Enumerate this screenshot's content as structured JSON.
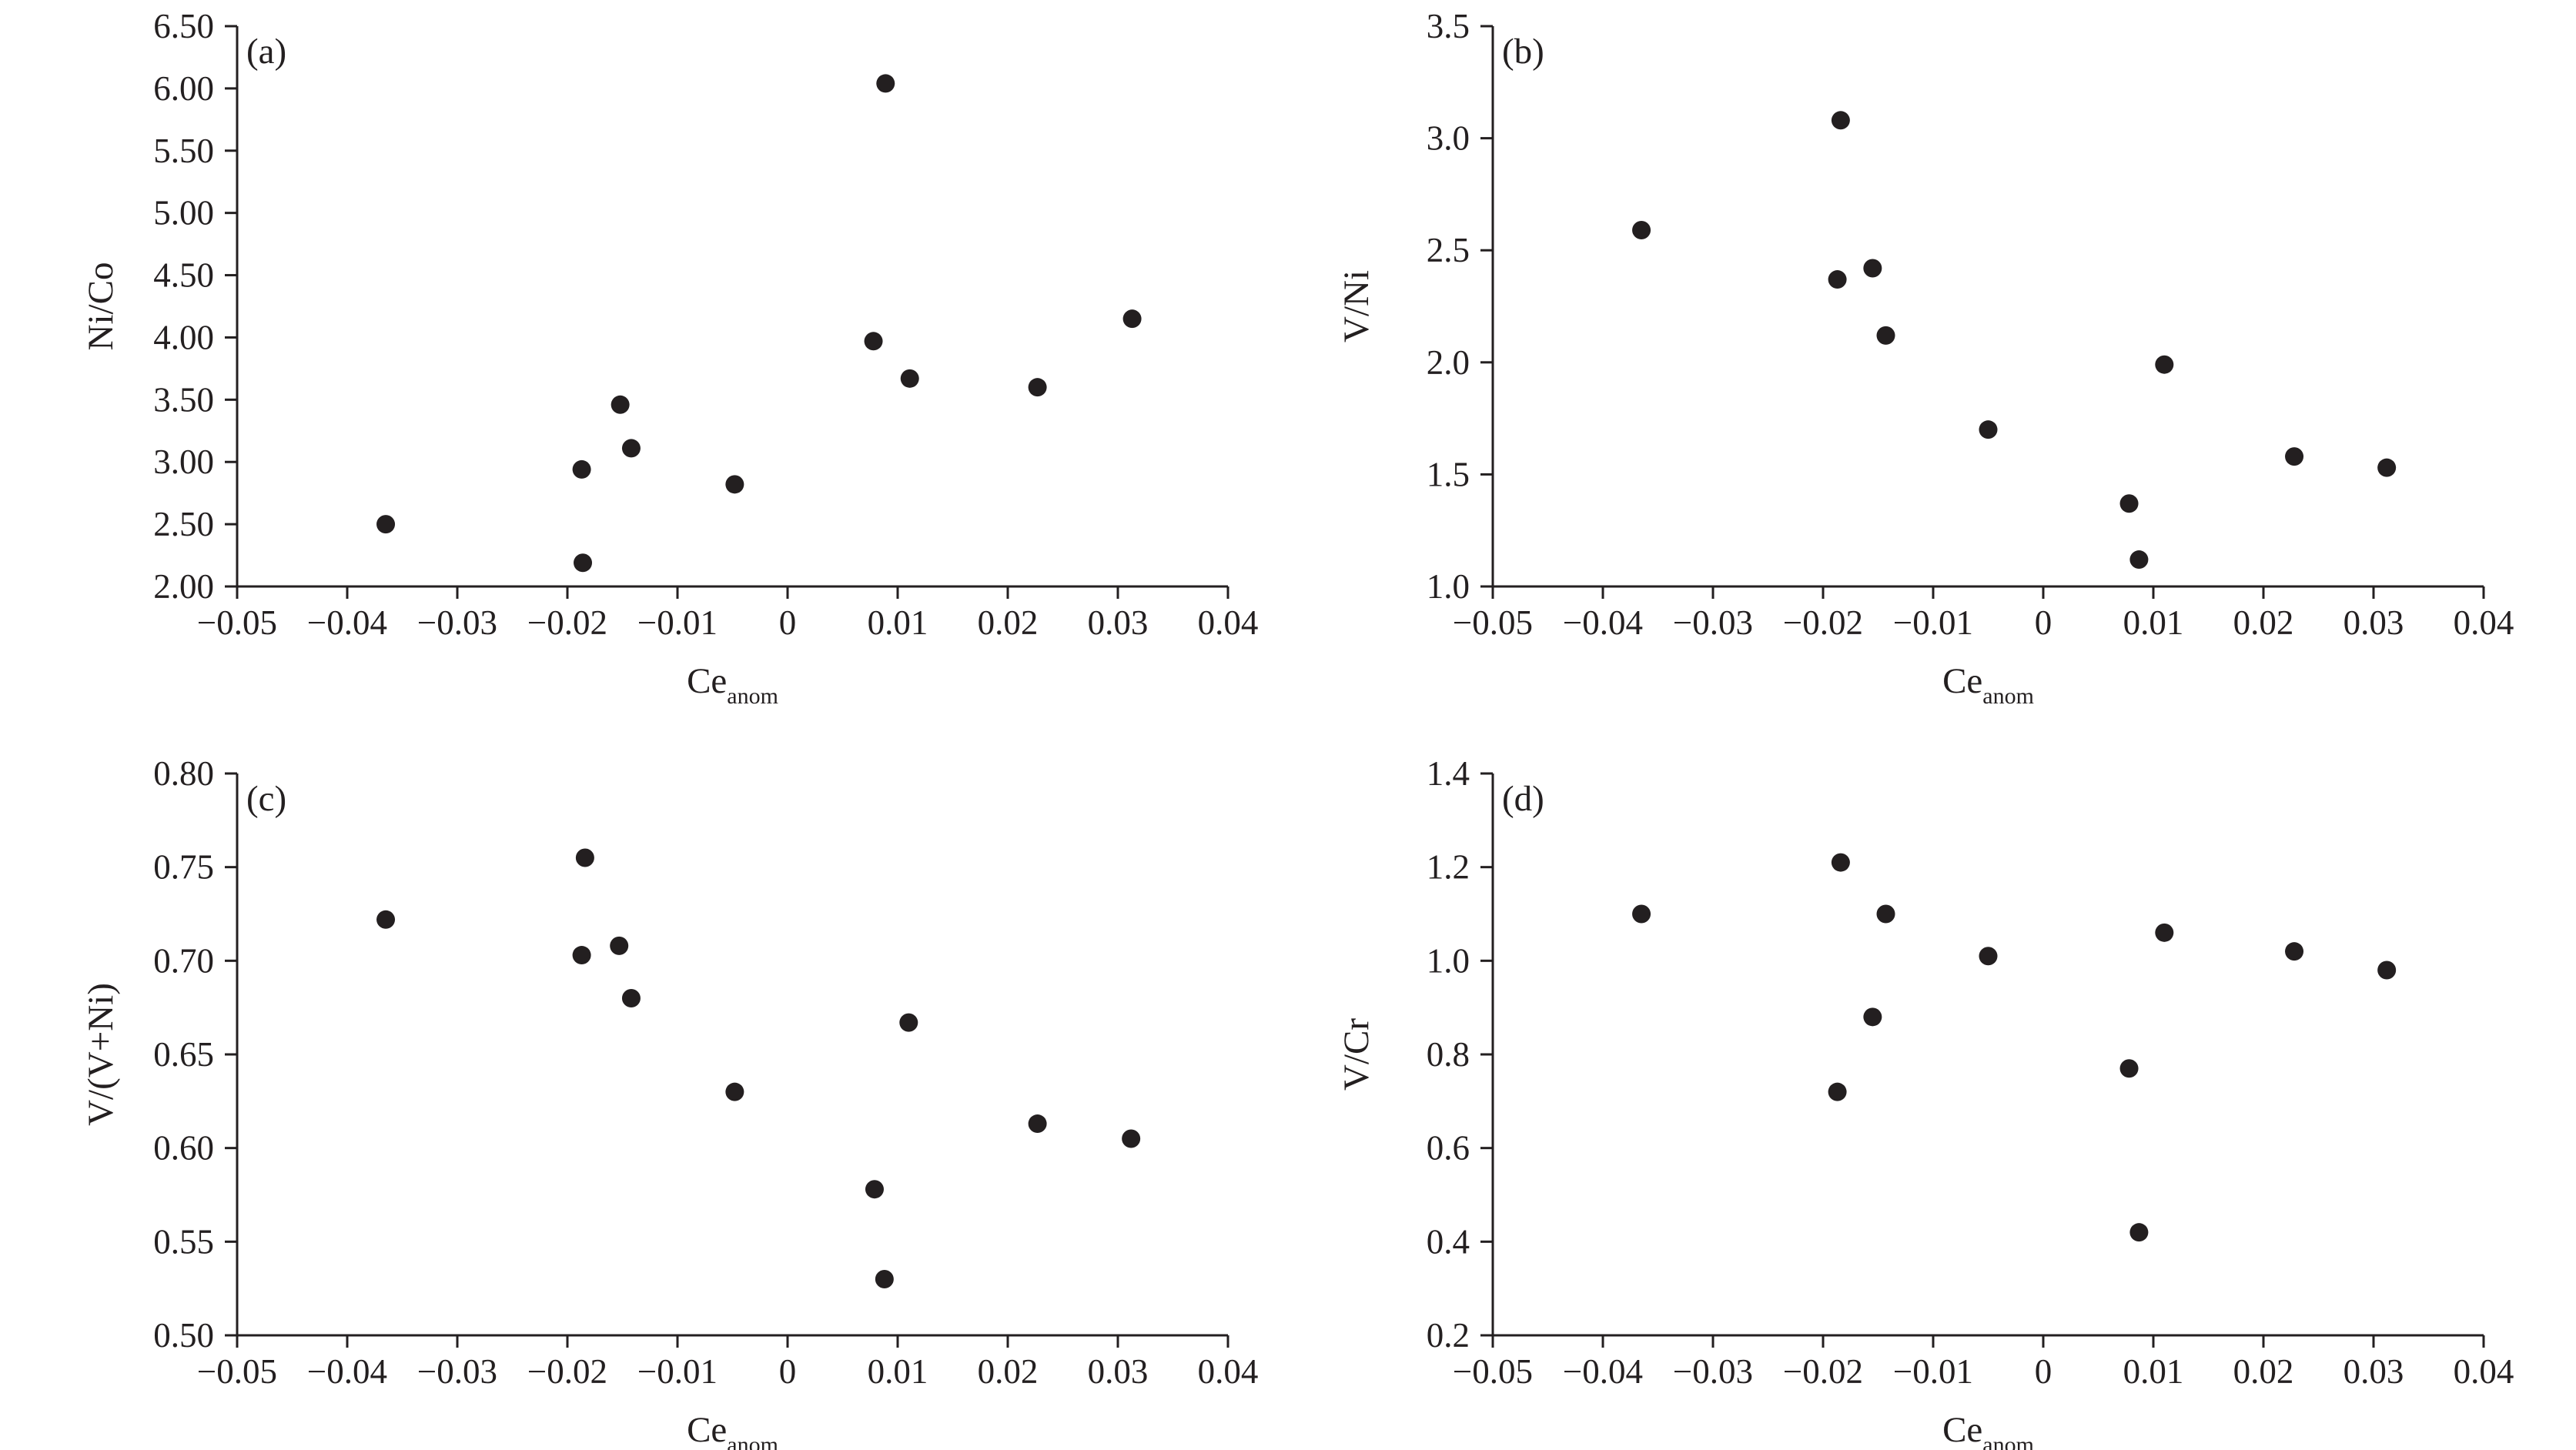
{
  "chart_data": [
    {
      "type": "scatter",
      "panel_label": "(a)",
      "xlabel": "Ce",
      "xlabel_subscript": "anom",
      "ylabel": "Ni/Co",
      "xlim": [
        -0.05,
        0.04
      ],
      "ylim": [
        2.0,
        6.5
      ],
      "xticks": [
        -0.05,
        -0.04,
        -0.03,
        -0.02,
        -0.01,
        0,
        0.01,
        0.02,
        0.03,
        0.04
      ],
      "xtick_labels": [
        "−0.05",
        "−0.04",
        "−0.03",
        "−0.02",
        "−0.01",
        "0",
        "0.01",
        "0.02",
        "0.03",
        "0.04"
      ],
      "yticks": [
        2.0,
        2.5,
        3.0,
        3.5,
        4.0,
        4.5,
        5.0,
        5.5,
        6.0,
        6.5
      ],
      "ytick_labels": [
        "2.00",
        "2.50",
        "3.00",
        "3.50",
        "4.00",
        "4.50",
        "5.00",
        "5.50",
        "6.00",
        "6.50"
      ],
      "grid": false,
      "legend": "none",
      "x": [
        -0.0365,
        -0.0187,
        -0.0186,
        -0.0152,
        -0.0142,
        -0.0048,
        0.0078,
        0.0089,
        0.0111,
        0.0227,
        0.0313
      ],
      "y": [
        2.5,
        2.94,
        2.19,
        3.46,
        3.11,
        2.82,
        3.97,
        6.04,
        3.67,
        3.6,
        4.15
      ]
    },
    {
      "type": "scatter",
      "panel_label": "(b)",
      "xlabel": "Ce",
      "xlabel_subscript": "anom",
      "ylabel": "V/Ni",
      "xlim": [
        -0.05,
        0.04
      ],
      "ylim": [
        1.0,
        3.5
      ],
      "xticks": [
        -0.05,
        -0.04,
        -0.03,
        -0.02,
        -0.01,
        0,
        0.01,
        0.02,
        0.03,
        0.04
      ],
      "xtick_labels": [
        "−0.05",
        "−0.04",
        "−0.03",
        "−0.02",
        "−0.01",
        "0",
        "0.01",
        "0.02",
        "0.03",
        "0.04"
      ],
      "yticks": [
        1.0,
        1.5,
        2.0,
        2.5,
        3.0,
        3.5
      ],
      "ytick_labels": [
        "1.0",
        "1.5",
        "2.0",
        "2.5",
        "3.0",
        "3.5"
      ],
      "grid": false,
      "legend": "none",
      "x": [
        -0.0365,
        -0.0187,
        -0.0184,
        -0.0155,
        -0.0143,
        -0.005,
        0.0078,
        0.0087,
        0.011,
        0.0228,
        0.0312
      ],
      "y": [
        2.59,
        2.37,
        3.08,
        2.42,
        2.12,
        1.7,
        1.37,
        1.12,
        1.99,
        1.58,
        1.53
      ]
    },
    {
      "type": "scatter",
      "panel_label": "(c)",
      "xlabel": "Ce",
      "xlabel_subscript": "anom",
      "ylabel": "V/(V+Ni)",
      "xlim": [
        -0.05,
        0.04
      ],
      "ylim": [
        0.5,
        0.8
      ],
      "xticks": [
        -0.05,
        -0.04,
        -0.03,
        -0.02,
        -0.01,
        0,
        0.01,
        0.02,
        0.03,
        0.04
      ],
      "xtick_labels": [
        "−0.05",
        "−0.04",
        "−0.03",
        "−0.02",
        "−0.01",
        "0",
        "0.01",
        "0.02",
        "0.03",
        "0.04"
      ],
      "yticks": [
        0.5,
        0.55,
        0.6,
        0.65,
        0.7,
        0.75,
        0.8
      ],
      "ytick_labels": [
        "0.50",
        "0.55",
        "0.60",
        "0.65",
        "0.70",
        "0.75",
        "0.80"
      ],
      "grid": false,
      "legend": "none",
      "x": [
        -0.0365,
        -0.0187,
        -0.0184,
        -0.0153,
        -0.0142,
        -0.0048,
        0.0079,
        0.0088,
        0.011,
        0.0227,
        0.0312
      ],
      "y": [
        0.722,
        0.703,
        0.755,
        0.708,
        0.68,
        0.63,
        0.578,
        0.53,
        0.667,
        0.613,
        0.605
      ]
    },
    {
      "type": "scatter",
      "panel_label": "(d)",
      "xlabel": "Ce",
      "xlabel_subscript": "anom",
      "ylabel": "V/Cr",
      "xlim": [
        -0.05,
        0.04
      ],
      "ylim": [
        0.2,
        1.4
      ],
      "xticks": [
        -0.05,
        -0.04,
        -0.03,
        -0.02,
        -0.01,
        0,
        0.01,
        0.02,
        0.03,
        0.04
      ],
      "xtick_labels": [
        "−0.05",
        "−0.04",
        "−0.03",
        "−0.02",
        "−0.01",
        "0",
        "0.01",
        "0.02",
        "0.03",
        "0.04"
      ],
      "yticks": [
        0.2,
        0.4,
        0.6,
        0.8,
        1.0,
        1.2,
        1.4
      ],
      "ytick_labels": [
        "0.2",
        "0.4",
        "0.6",
        "0.8",
        "1.0",
        "1.2",
        "1.4"
      ],
      "grid": false,
      "legend": "none",
      "x": [
        -0.0365,
        -0.0187,
        -0.0184,
        -0.0155,
        -0.0143,
        -0.005,
        0.0078,
        0.0087,
        0.011,
        0.0228,
        0.0312
      ],
      "y": [
        1.1,
        0.72,
        1.21,
        0.88,
        1.1,
        1.01,
        0.77,
        0.42,
        1.06,
        1.02,
        0.98
      ]
    }
  ]
}
